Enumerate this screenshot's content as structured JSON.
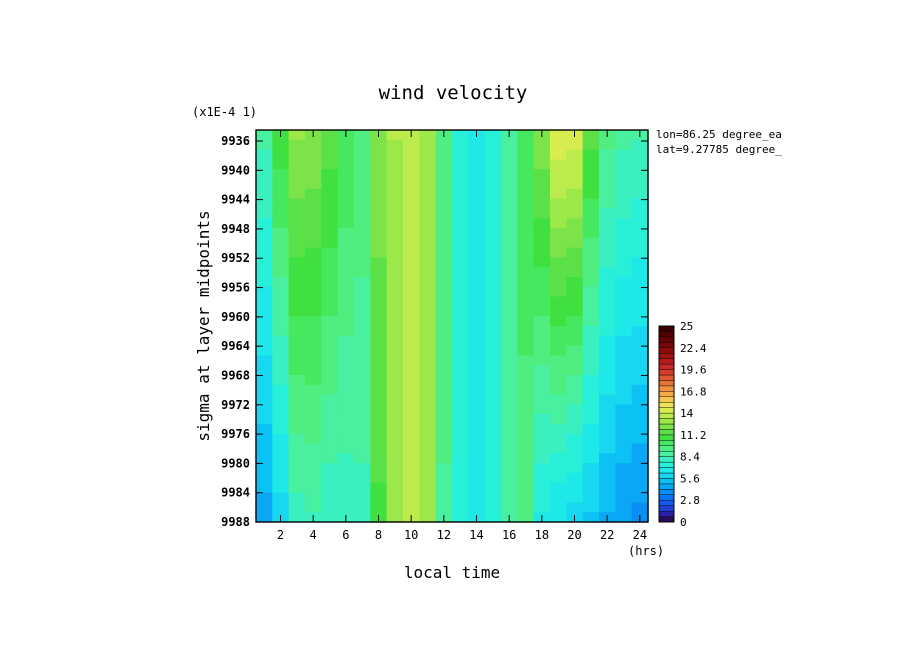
{
  "chart_data": {
    "type": "heatmap",
    "title": "wind velocity",
    "xlabel": "local time",
    "ylabel": "sigma at layer midpoints",
    "x_units": "(hrs)",
    "y_scale_note": "(x1E-4 1)",
    "annotations": [
      "lon=86.25 degree_ea",
      "lat=9.27785 degree_"
    ],
    "x_ticks": [
      2,
      4,
      6,
      8,
      10,
      12,
      14,
      16,
      18,
      20,
      22,
      24
    ],
    "y_ticks": [
      9936,
      9940,
      9944,
      9948,
      9952,
      9956,
      9960,
      9964,
      9968,
      9972,
      9976,
      9980,
      9984,
      9988
    ],
    "xlim": [
      0.5,
      24.5
    ],
    "ylim": [
      9934.5,
      9988
    ],
    "y_inverted": true,
    "colorbar": {
      "ticks": [
        "25",
        "22.4",
        "19.6",
        "16.8",
        "14",
        "11.2",
        "8.4",
        "5.6",
        "2.8",
        "0"
      ],
      "min": 0,
      "max": 25,
      "levels": 36,
      "colors": [
        "#2a0c5e",
        "#2d1fa8",
        "#1f3ed8",
        "#1458ee",
        "#0c74f4",
        "#0b8ff4",
        "#0aa8f4",
        "#0cc2f4",
        "#18d8f0",
        "#1ee8e8",
        "#28f0d8",
        "#3af0c0",
        "#48f0a0",
        "#50ee80",
        "#46e860",
        "#40e040",
        "#5ce048",
        "#7ce448",
        "#9ce848",
        "#bcec4c",
        "#d8ec50",
        "#eee058",
        "#f4c850",
        "#f4ac48",
        "#f09040",
        "#e87438",
        "#e05830",
        "#d43c2c",
        "#c82828",
        "#b41c1c",
        "#a01414",
        "#8c0c0c",
        "#780808",
        "#640404",
        "#500000",
        "#3c0000"
      ]
    },
    "x": [
      1,
      2,
      3,
      4,
      5,
      6,
      7,
      8,
      9,
      10,
      11,
      12,
      13,
      14,
      15,
      16,
      17,
      18,
      19,
      20,
      21,
      22,
      23,
      24
    ],
    "y": [
      9936,
      9940,
      9944,
      9948,
      9952,
      9956,
      9960,
      9964,
      9968,
      9972,
      9976,
      9980,
      9984,
      9988
    ],
    "values_top": [
      8.5,
      11,
      12.6,
      12.4,
      11.5,
      10.3,
      9.6,
      12.2,
      13.2,
      13.5,
      12.8,
      9.2,
      7.2,
      6.8,
      7.6,
      8.5,
      10.4,
      12.4,
      14.6,
      14.4,
      11.4,
      9.2,
      8.6,
      8.4
    ],
    "values_bottom": [
      4.6,
      5.8,
      8.0,
      8.2,
      7.8,
      7.9,
      8.1,
      11.0,
      12.8,
      13.4,
      12.6,
      9.0,
      7.0,
      6.7,
      7.4,
      8.4,
      9.2,
      6.8,
      6.2,
      5.8,
      5.4,
      4.8,
      4.2,
      4.0
    ]
  }
}
